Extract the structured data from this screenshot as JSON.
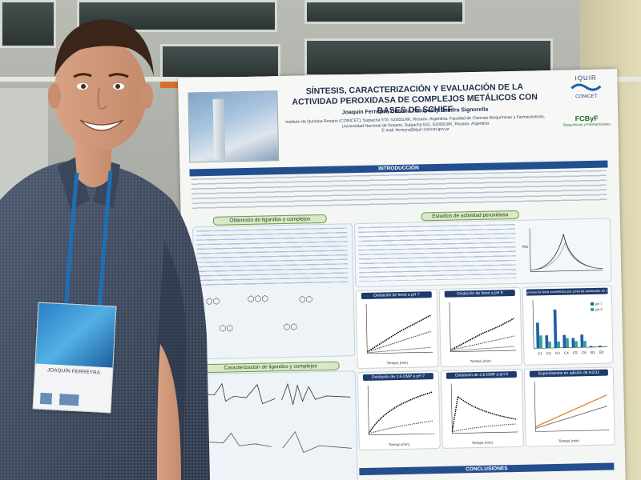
{
  "poster": {
    "title": "SÍNTESIS, CARACTERIZACIÓN Y EVALUACIÓN DE LA ACTIVIDAD PEROXIDASA DE COMPLEJOS METÁLICOS CON BASES DE SCHIFF",
    "authors": "Joaquín Ferreyra, Claudia Palopoli y Sandra Signorella",
    "affiliation": "Instituto de Química Rosario (CONICET), Suipacha 570, S2002LRK, Rosario, Argentina. Facultad de Ciencias Bioquímicas y Farmacéuticas, Universidad Nacional de Rosario, Suipacha 531, S2002LRK, Rosario, Argentina",
    "email": "E-mail: ferreyra@iquir-conicet.gov.ar",
    "logo_top": "IQUIR",
    "logo_top_sub": "CONICET",
    "logo_bottom": "FCByF",
    "logo_bottom_sub": "Bioquímicas y Farmacéuticas",
    "sections": {
      "intro": "INTRODUCCIÓN",
      "synthesis": "Obtención de ligandos y complejos",
      "activity": "Estudios de actividad peroxidasa",
      "characterization": "Caracterización de ligandos y complejos",
      "conclusions": "CONCLUSIONES"
    },
    "plots": {
      "phenol7": "Oxidación de fenol a pH 7",
      "phenol9": "Oxidación de fenol a pH 9",
      "umol": "μmoles de fenol convertidos por μmol de catalizador en 2 h",
      "dmp7": "Oxidación de 2,6-DMP a pH 7",
      "dmp9": "Oxidación de 2,6-DMP a pH 9",
      "h2o2": "Experimentos en adición de H2O2",
      "tiempo": "Tiempo (min)",
      "abs": "Abs"
    },
    "complex_labels": [
      "C1",
      "C2",
      "C3",
      "C4",
      "C5",
      "C6"
    ]
  },
  "badge": {
    "name": "JOAQUÍN FERREYRA"
  },
  "chart_data": {
    "type": "bar",
    "title": "μmoles de fenol convertidos por μmol de catalizador en 2 h",
    "categories": [
      "C1",
      "C2",
      "C3",
      "C4",
      "C5",
      "C6",
      "B1",
      "B2"
    ],
    "series": [
      {
        "name": "pH 7",
        "values": [
          4,
          2,
          6,
          2,
          1.5,
          2,
          0.2,
          0.2
        ]
      },
      {
        "name": "pH 9",
        "values": [
          2,
          1,
          1,
          1.5,
          1,
          1,
          0.1,
          0.1
        ]
      }
    ],
    "colors": [
      "#1f5fa8",
      "#2fa39a"
    ]
  }
}
